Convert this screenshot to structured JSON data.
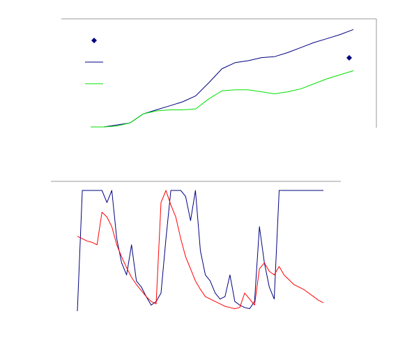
{
  "chart_data": [
    {
      "type": "line",
      "title": "",
      "xlabel": "",
      "ylabel": "",
      "grid": false,
      "legend": {
        "position": "top-left",
        "items": [
          {
            "kind": "marker",
            "color": "#000080"
          },
          {
            "kind": "line",
            "color": "#000080"
          },
          {
            "kind": "line",
            "color": "#00e000"
          }
        ]
      },
      "marker_points": [
        {
          "series": "marker",
          "x": 1.0,
          "y": 0.64,
          "color": "#000080"
        }
      ],
      "x": [
        0.0,
        0.05,
        0.1,
        0.15,
        0.2,
        0.25,
        0.3,
        0.35,
        0.4,
        0.45,
        0.5,
        0.55,
        0.6,
        0.65,
        0.7,
        0.75,
        0.8,
        0.85,
        0.9,
        0.95,
        1.0
      ],
      "series": [
        {
          "color": "#000080",
          "values": [
            0.0,
            0.0,
            0.02,
            0.04,
            0.13,
            0.17,
            0.21,
            0.25,
            0.31,
            0.44,
            0.58,
            0.64,
            0.66,
            0.69,
            0.7,
            0.74,
            0.79,
            0.84,
            0.88,
            0.92,
            0.97
          ]
        },
        {
          "color": "#00e000",
          "values": [
            0.0,
            0.0,
            0.01,
            0.04,
            0.13,
            0.16,
            0.17,
            0.17,
            0.18,
            0.28,
            0.36,
            0.37,
            0.37,
            0.35,
            0.33,
            0.35,
            0.38,
            0.43,
            0.48,
            0.52,
            0.56
          ]
        }
      ]
    },
    {
      "type": "line",
      "title": "",
      "xlabel": "",
      "ylabel": "",
      "grid": false,
      "x": [
        0,
        2,
        4,
        6,
        8,
        10,
        12,
        14,
        16,
        18,
        20,
        22,
        24,
        26,
        28,
        30,
        32,
        34,
        36,
        38,
        40,
        42,
        44,
        46,
        48,
        50,
        52,
        54,
        56,
        58,
        60,
        62,
        64,
        66,
        68,
        70,
        72,
        74,
        76,
        78,
        80,
        82,
        84,
        86,
        88,
        90,
        92,
        94,
        96,
        98,
        100
      ],
      "series": [
        {
          "color": "#000080",
          "values": [
            0.0,
            1.0,
            1.0,
            1.0,
            1.0,
            1.0,
            0.9,
            1.0,
            0.6,
            0.4,
            0.3,
            0.55,
            0.25,
            0.2,
            0.12,
            0.05,
            0.08,
            0.15,
            0.6,
            1.0,
            1.0,
            1.0,
            0.95,
            0.75,
            1.0,
            0.5,
            0.3,
            0.25,
            0.15,
            0.1,
            0.12,
            0.3,
            0.08,
            0.05,
            0.03,
            0.02,
            0.08,
            0.7,
            0.4,
            0.2,
            0.1,
            1.0,
            1.0,
            1.0,
            1.0,
            1.0,
            1.0,
            1.0,
            1.0,
            1.0,
            1.0
          ]
        },
        {
          "color": "#ff0000",
          "values": [
            0.62,
            0.6,
            0.58,
            0.57,
            0.55,
            0.82,
            0.78,
            0.7,
            0.55,
            0.45,
            0.36,
            0.28,
            0.22,
            0.17,
            0.12,
            0.08,
            0.06,
            0.9,
            1.0,
            0.88,
            0.78,
            0.6,
            0.45,
            0.35,
            0.25,
            0.18,
            0.12,
            0.1,
            0.08,
            0.06,
            0.04,
            0.03,
            0.02,
            0.03,
            0.15,
            0.1,
            0.05,
            0.35,
            0.4,
            0.33,
            0.3,
            0.37,
            0.3,
            0.26,
            0.22,
            0.2,
            0.18,
            0.15,
            0.12,
            0.09,
            0.07
          ]
        }
      ]
    }
  ]
}
